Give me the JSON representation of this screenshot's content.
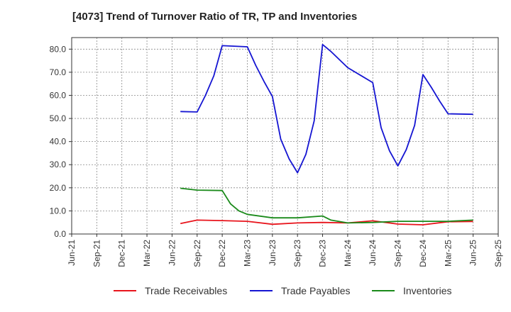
{
  "chart_data": {
    "type": "line",
    "title": "[4073]  Trend of Turnover Ratio of TR, TP and Inventories",
    "xlabel": "",
    "ylabel": "",
    "ylim": [
      0,
      85
    ],
    "yticks": [
      0,
      10,
      20,
      30,
      40,
      50,
      60,
      70,
      80
    ],
    "ytick_labels": [
      "0.0",
      "10.0",
      "20.0",
      "30.0",
      "40.0",
      "50.0",
      "60.0",
      "70.0",
      "80.0"
    ],
    "xtick_labels": [
      "Jun-21",
      "Sep-21",
      "Dec-21",
      "Mar-22",
      "Jun-22",
      "Sep-22",
      "Dec-22",
      "Mar-23",
      "Jun-23",
      "Sep-23",
      "Dec-23",
      "Mar-24",
      "Jun-24",
      "Sep-24",
      "Dec-24",
      "Mar-25",
      "Jun-25",
      "Sep-25"
    ],
    "x": [
      "Jul-22",
      "Aug-22",
      "Sep-22",
      "Oct-22",
      "Nov-22",
      "Dec-22",
      "Jan-23",
      "Feb-23",
      "Mar-23",
      "Apr-23",
      "May-23",
      "Jun-23",
      "Jul-23",
      "Aug-23",
      "Sep-23",
      "Oct-23",
      "Nov-23",
      "Dec-23",
      "Jan-24",
      "Feb-24",
      "Mar-24",
      "Apr-24",
      "May-24",
      "Jun-24",
      "Jul-24",
      "Aug-24",
      "Sep-24",
      "Oct-24",
      "Nov-24",
      "Dec-24",
      "Jan-25",
      "Feb-25",
      "Mar-25",
      "Apr-25",
      "May-25",
      "Jun-25"
    ],
    "grid": true,
    "legend_position": "bottom",
    "series": [
      {
        "name": "Trade Receivables",
        "color": "#e8141c",
        "values": [
          4.5,
          null,
          6.0,
          null,
          null,
          5.8,
          null,
          null,
          5.5,
          null,
          null,
          4.2,
          null,
          null,
          4.8,
          null,
          null,
          5.0,
          null,
          null,
          4.8,
          null,
          null,
          5.7,
          null,
          null,
          4.3,
          null,
          null,
          4.0,
          null,
          null,
          5.3,
          null,
          null,
          5.4
        ]
      },
      {
        "name": "Trade Payables",
        "color": "#1515d2",
        "values": [
          53.0,
          null,
          52.8,
          60.0,
          68.5,
          81.5,
          null,
          null,
          81.0,
          73.0,
          66.0,
          59.5,
          41.0,
          32.5,
          26.5,
          34.5,
          49.0,
          82.0,
          79.0,
          75.5,
          72.0,
          null,
          null,
          65.5,
          46.0,
          36.0,
          29.5,
          36.5,
          47.0,
          69.0,
          63.5,
          57.5,
          52.0,
          null,
          null,
          51.8
        ]
      },
      {
        "name": "Inventories",
        "color": "#1a8a1a",
        "values": [
          19.8,
          null,
          19.0,
          null,
          null,
          18.8,
          13.0,
          10.0,
          8.5,
          null,
          null,
          7.0,
          null,
          null,
          7.0,
          null,
          null,
          7.8,
          6.0,
          null,
          4.8,
          null,
          null,
          5.0,
          null,
          null,
          5.5,
          null,
          null,
          5.5,
          null,
          null,
          5.5,
          null,
          null,
          6.0
        ]
      }
    ]
  }
}
